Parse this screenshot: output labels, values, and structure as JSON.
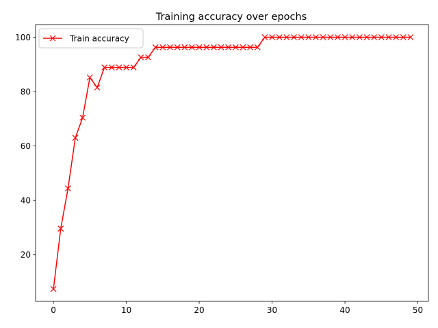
{
  "chart_data": {
    "type": "line",
    "title": "Training accuracy over epochs",
    "xlabel": "",
    "ylabel": "",
    "xlim": [
      -2.45,
      51.45
    ],
    "ylim": [
      2.85,
      104.65
    ],
    "xticks": [
      0,
      10,
      20,
      30,
      40,
      50
    ],
    "yticks": [
      20,
      40,
      60,
      80,
      100
    ],
    "grid": false,
    "legend_position": "upper left",
    "series": [
      {
        "name": "Train accuracy",
        "color": "#ff0000",
        "marker": "x",
        "x": [
          0,
          1,
          2,
          3,
          4,
          5,
          6,
          7,
          8,
          9,
          10,
          11,
          12,
          13,
          14,
          15,
          16,
          17,
          18,
          19,
          20,
          21,
          22,
          23,
          24,
          25,
          26,
          27,
          28,
          29,
          30,
          31,
          32,
          33,
          34,
          35,
          36,
          37,
          38,
          39,
          40,
          41,
          42,
          43,
          44,
          45,
          46,
          47,
          48,
          49
        ],
        "y": [
          7.4,
          29.6,
          44.4,
          63.0,
          70.4,
          85.2,
          81.5,
          88.9,
          88.9,
          88.9,
          88.9,
          88.9,
          92.6,
          92.6,
          96.3,
          96.3,
          96.3,
          96.3,
          96.3,
          96.3,
          96.3,
          96.3,
          96.3,
          96.3,
          96.3,
          96.3,
          96.3,
          96.3,
          96.3,
          100,
          100,
          100,
          100,
          100,
          100,
          100,
          100,
          100,
          100,
          100,
          100,
          100,
          100,
          100,
          100,
          100,
          100,
          100,
          100,
          100
        ]
      }
    ]
  }
}
